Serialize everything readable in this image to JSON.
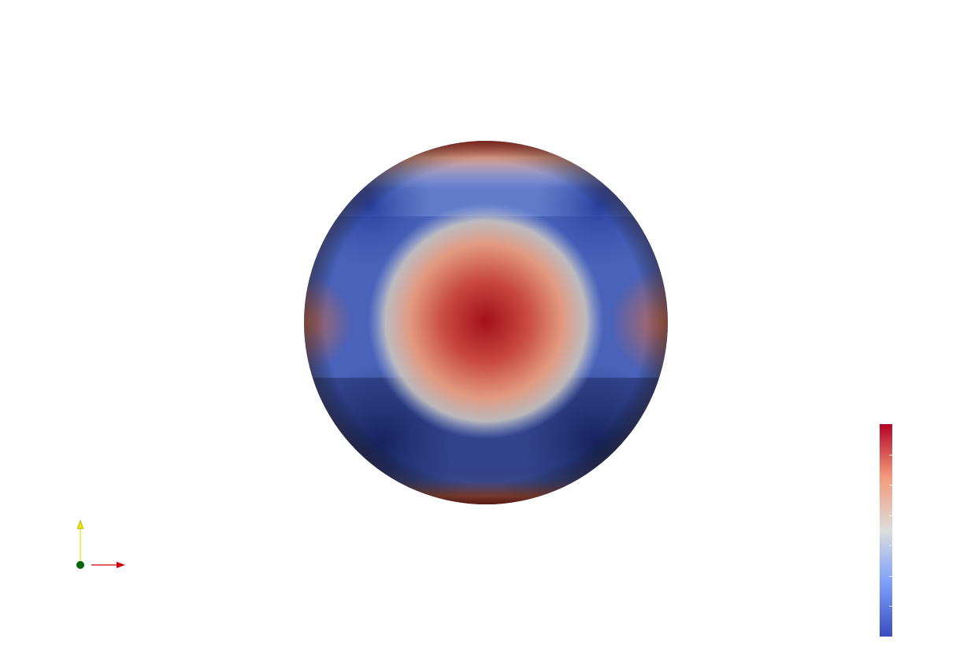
{
  "view": {
    "background": "#ffffff"
  },
  "colormap": {
    "name": "Cool to Warm",
    "stops": [
      {
        "pos": 0.0,
        "color": "#3b4cc0"
      },
      {
        "pos": 0.25,
        "color": "#7b9ff9"
      },
      {
        "pos": 0.5,
        "color": "#dddddd"
      },
      {
        "pos": 0.75,
        "color": "#f49a7b"
      },
      {
        "pos": 1.0,
        "color": "#b40426"
      }
    ],
    "tick_count": 7
  },
  "axes": {
    "x_color": "#cc0000",
    "y_color": "#e6e600",
    "z_color": "#006400",
    "x_icon": "x-axis-arrow-icon",
    "y_icon": "y-axis-arrow-icon",
    "z_icon": "z-axis-dot-icon"
  },
  "sphere": {
    "field_colors": {
      "hot": "#a50f1c",
      "warm": "#d8735c",
      "neutral": "#c9c4c0",
      "cool": "#7895d8",
      "cold": "#3f56ad",
      "deep": "#1f2f6c"
    }
  }
}
